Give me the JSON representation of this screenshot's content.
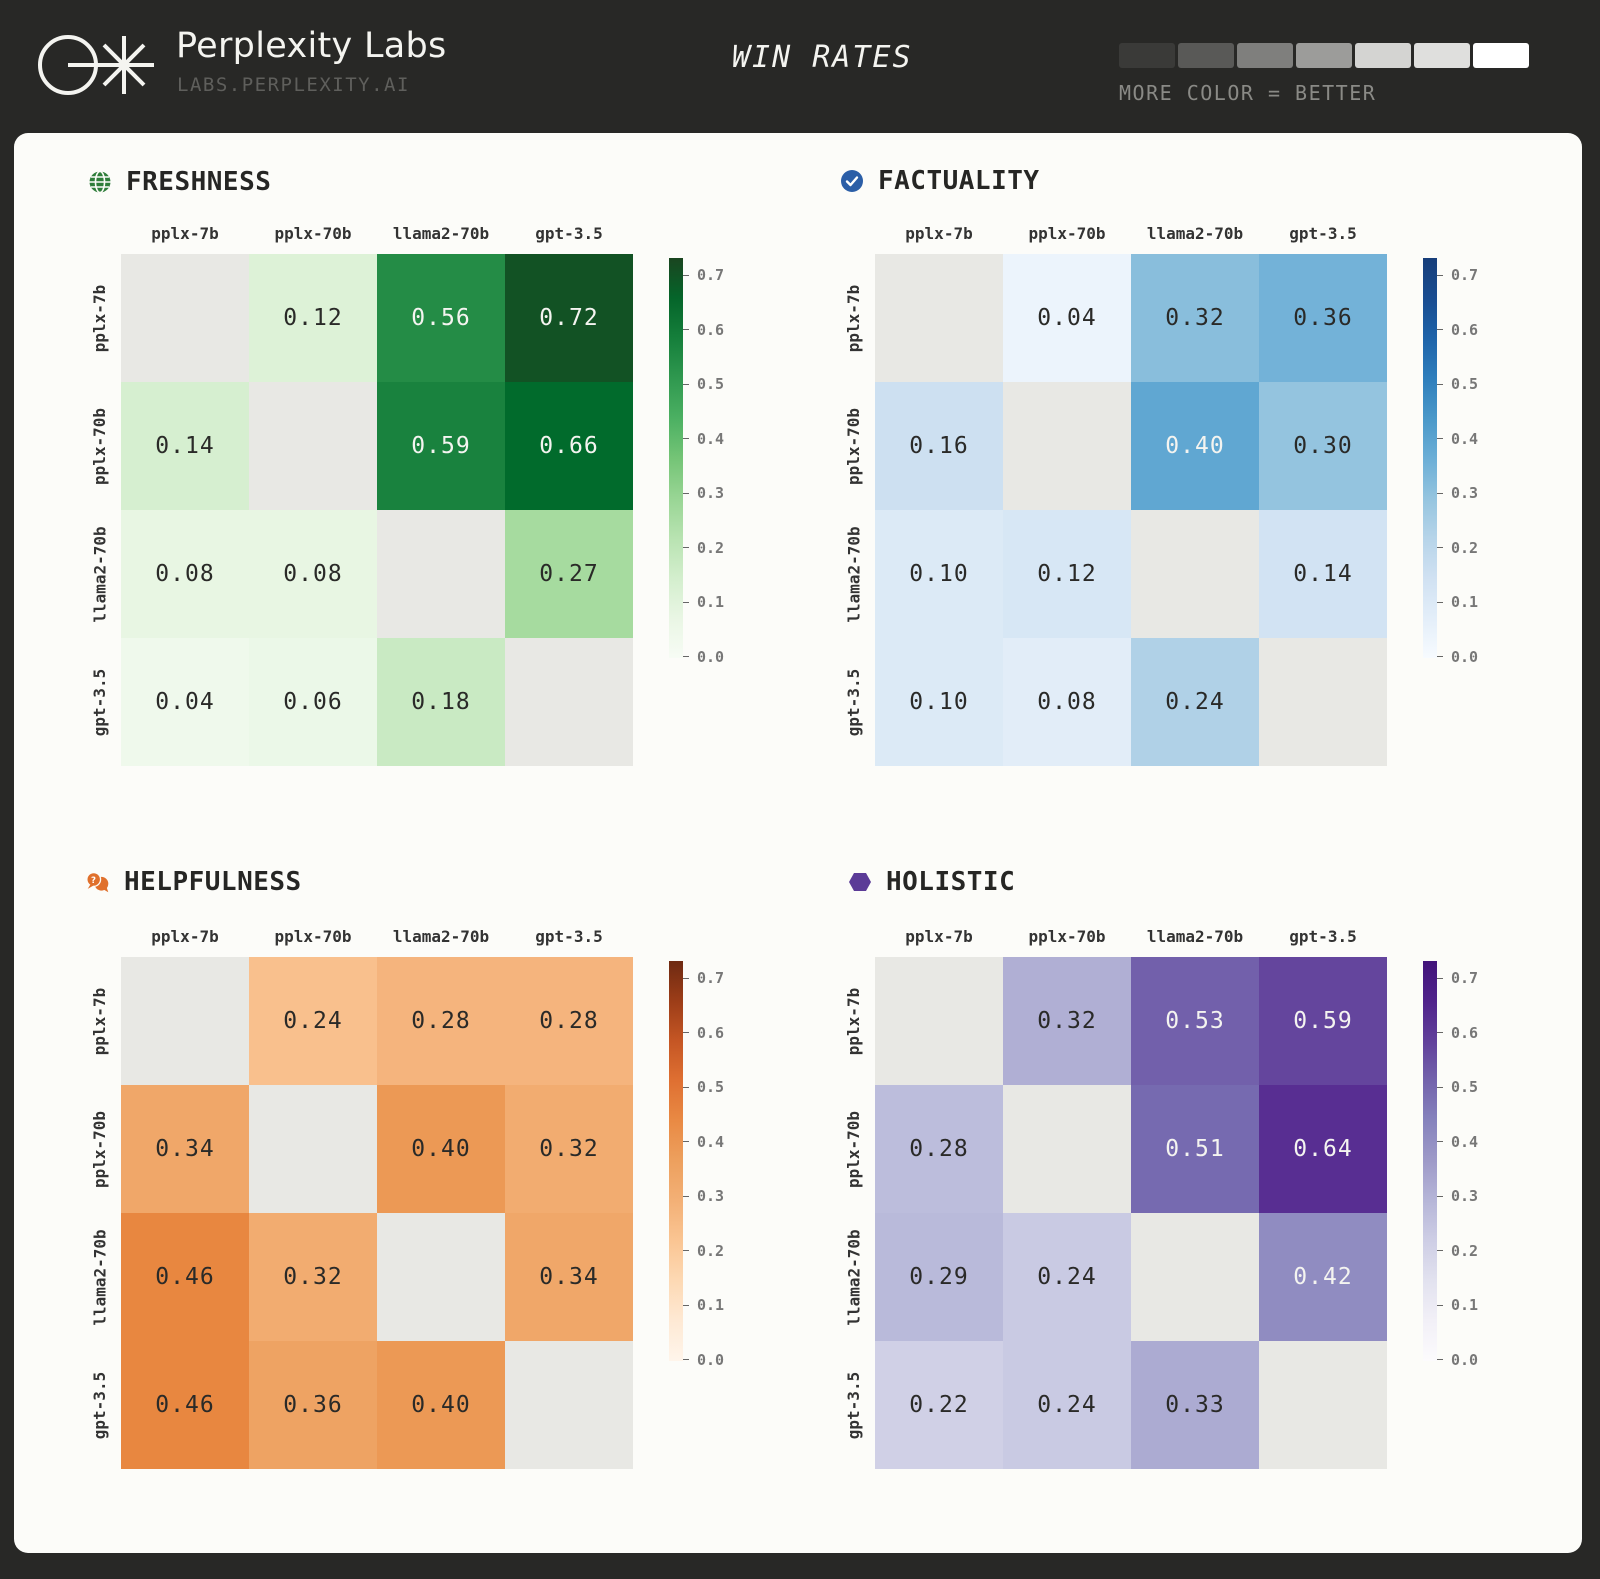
{
  "header": {
    "brand_title": "Perplexity Labs",
    "brand_subtitle": "LABS.PERPLEXITY.AI",
    "page_title": "WIN RATES",
    "legend_caption": "MORE COLOR = BETTER",
    "legend_swatches": [
      "#3a3a38",
      "#595957",
      "#7f7f7d",
      "#9c9c9a",
      "#d4d4d2",
      "#dfdfdd",
      "#ffffff"
    ]
  },
  "models": [
    "pplx-7b",
    "pplx-70b",
    "llama2-70b",
    "gpt-3.5"
  ],
  "colorbar_ticks": [
    "0.7",
    "0.6",
    "0.5",
    "0.4",
    "0.3",
    "0.2",
    "0.1",
    "0.0"
  ],
  "charts": {
    "freshness": {
      "title": "FRESHNESS",
      "icon": "globe-icon",
      "accent": "#2e7d3a"
    },
    "factuality": {
      "title": "FACTUALITY",
      "icon": "check-circle-icon",
      "accent": "#2b5ea7"
    },
    "helpfulness": {
      "title": "HELPFULNESS",
      "icon": "chat-question-icon",
      "accent": "#e0702c"
    },
    "holistic": {
      "title": "HOLISTIC",
      "icon": "hexagon-icon",
      "accent": "#5b3b97"
    }
  },
  "chart_data": [
    {
      "type": "heatmap",
      "title": "FRESHNESS",
      "x": [
        "pplx-7b",
        "pplx-70b",
        "llama2-70b",
        "gpt-3.5"
      ],
      "y": [
        "pplx-7b",
        "pplx-70b",
        "llama2-70b",
        "gpt-3.5"
      ],
      "values": [
        [
          null,
          0.12,
          0.56,
          0.72
        ],
        [
          0.14,
          null,
          0.59,
          0.66
        ],
        [
          0.08,
          0.08,
          null,
          0.27
        ],
        [
          0.04,
          0.06,
          0.18,
          null
        ]
      ],
      "labels": [
        [
          "",
          "0.12",
          "0.56",
          "0.72"
        ],
        [
          "0.14",
          "",
          "0.59",
          "0.66"
        ],
        [
          "0.08",
          "0.08",
          "",
          "0.27"
        ],
        [
          "0.04",
          "0.06",
          "0.18",
          ""
        ]
      ],
      "colormap": "Greens",
      "colorbar_range": [
        0.0,
        0.7
      ]
    },
    {
      "type": "heatmap",
      "title": "FACTUALITY",
      "x": [
        "pplx-7b",
        "pplx-70b",
        "llama2-70b",
        "gpt-3.5"
      ],
      "y": [
        "pplx-7b",
        "pplx-70b",
        "llama2-70b",
        "gpt-3.5"
      ],
      "values": [
        [
          null,
          0.04,
          0.32,
          0.36
        ],
        [
          0.16,
          null,
          0.4,
          0.3
        ],
        [
          0.1,
          0.12,
          null,
          0.14
        ],
        [
          0.1,
          0.08,
          0.24,
          null
        ]
      ],
      "labels": [
        [
          "",
          "0.04",
          "0.32",
          "0.36"
        ],
        [
          "0.16",
          "",
          "0.40",
          "0.30"
        ],
        [
          "0.10",
          "0.12",
          "",
          "0.14"
        ],
        [
          "0.10",
          "0.08",
          "0.24",
          ""
        ]
      ],
      "colormap": "Blues",
      "colorbar_range": [
        0.0,
        0.7
      ]
    },
    {
      "type": "heatmap",
      "title": "HELPFULNESS",
      "x": [
        "pplx-7b",
        "pplx-70b",
        "llama2-70b",
        "gpt-3.5"
      ],
      "y": [
        "pplx-7b",
        "pplx-70b",
        "llama2-70b",
        "gpt-3.5"
      ],
      "values": [
        [
          null,
          0.24,
          0.28,
          0.28
        ],
        [
          0.34,
          null,
          0.4,
          0.32
        ],
        [
          0.46,
          0.32,
          null,
          0.34
        ],
        [
          0.46,
          0.36,
          0.4,
          null
        ]
      ],
      "labels": [
        [
          "",
          "0.24",
          "0.28",
          "0.28"
        ],
        [
          "0.34",
          "",
          "0.40",
          "0.32"
        ],
        [
          "0.46",
          "0.32",
          "",
          "0.34"
        ],
        [
          "0.46",
          "0.36",
          "0.40",
          ""
        ]
      ],
      "colormap": "Oranges",
      "colorbar_range": [
        0.0,
        0.7
      ]
    },
    {
      "type": "heatmap",
      "title": "HOLISTIC",
      "x": [
        "pplx-7b",
        "pplx-70b",
        "llama2-70b",
        "gpt-3.5"
      ],
      "y": [
        "pplx-7b",
        "pplx-70b",
        "llama2-70b",
        "gpt-3.5"
      ],
      "values": [
        [
          null,
          0.32,
          0.53,
          0.59
        ],
        [
          0.28,
          null,
          0.51,
          0.64
        ],
        [
          0.29,
          0.24,
          null,
          0.42
        ],
        [
          0.22,
          0.24,
          0.33,
          null
        ]
      ],
      "labels": [
        [
          "",
          "0.32",
          "0.53",
          "0.59"
        ],
        [
          "0.28",
          "",
          "0.51",
          "0.64"
        ],
        [
          "0.29",
          "0.24",
          "",
          "0.42"
        ],
        [
          "0.22",
          "0.24",
          "0.33",
          ""
        ]
      ],
      "colormap": "Purples",
      "colorbar_range": [
        0.0,
        0.7
      ]
    }
  ]
}
